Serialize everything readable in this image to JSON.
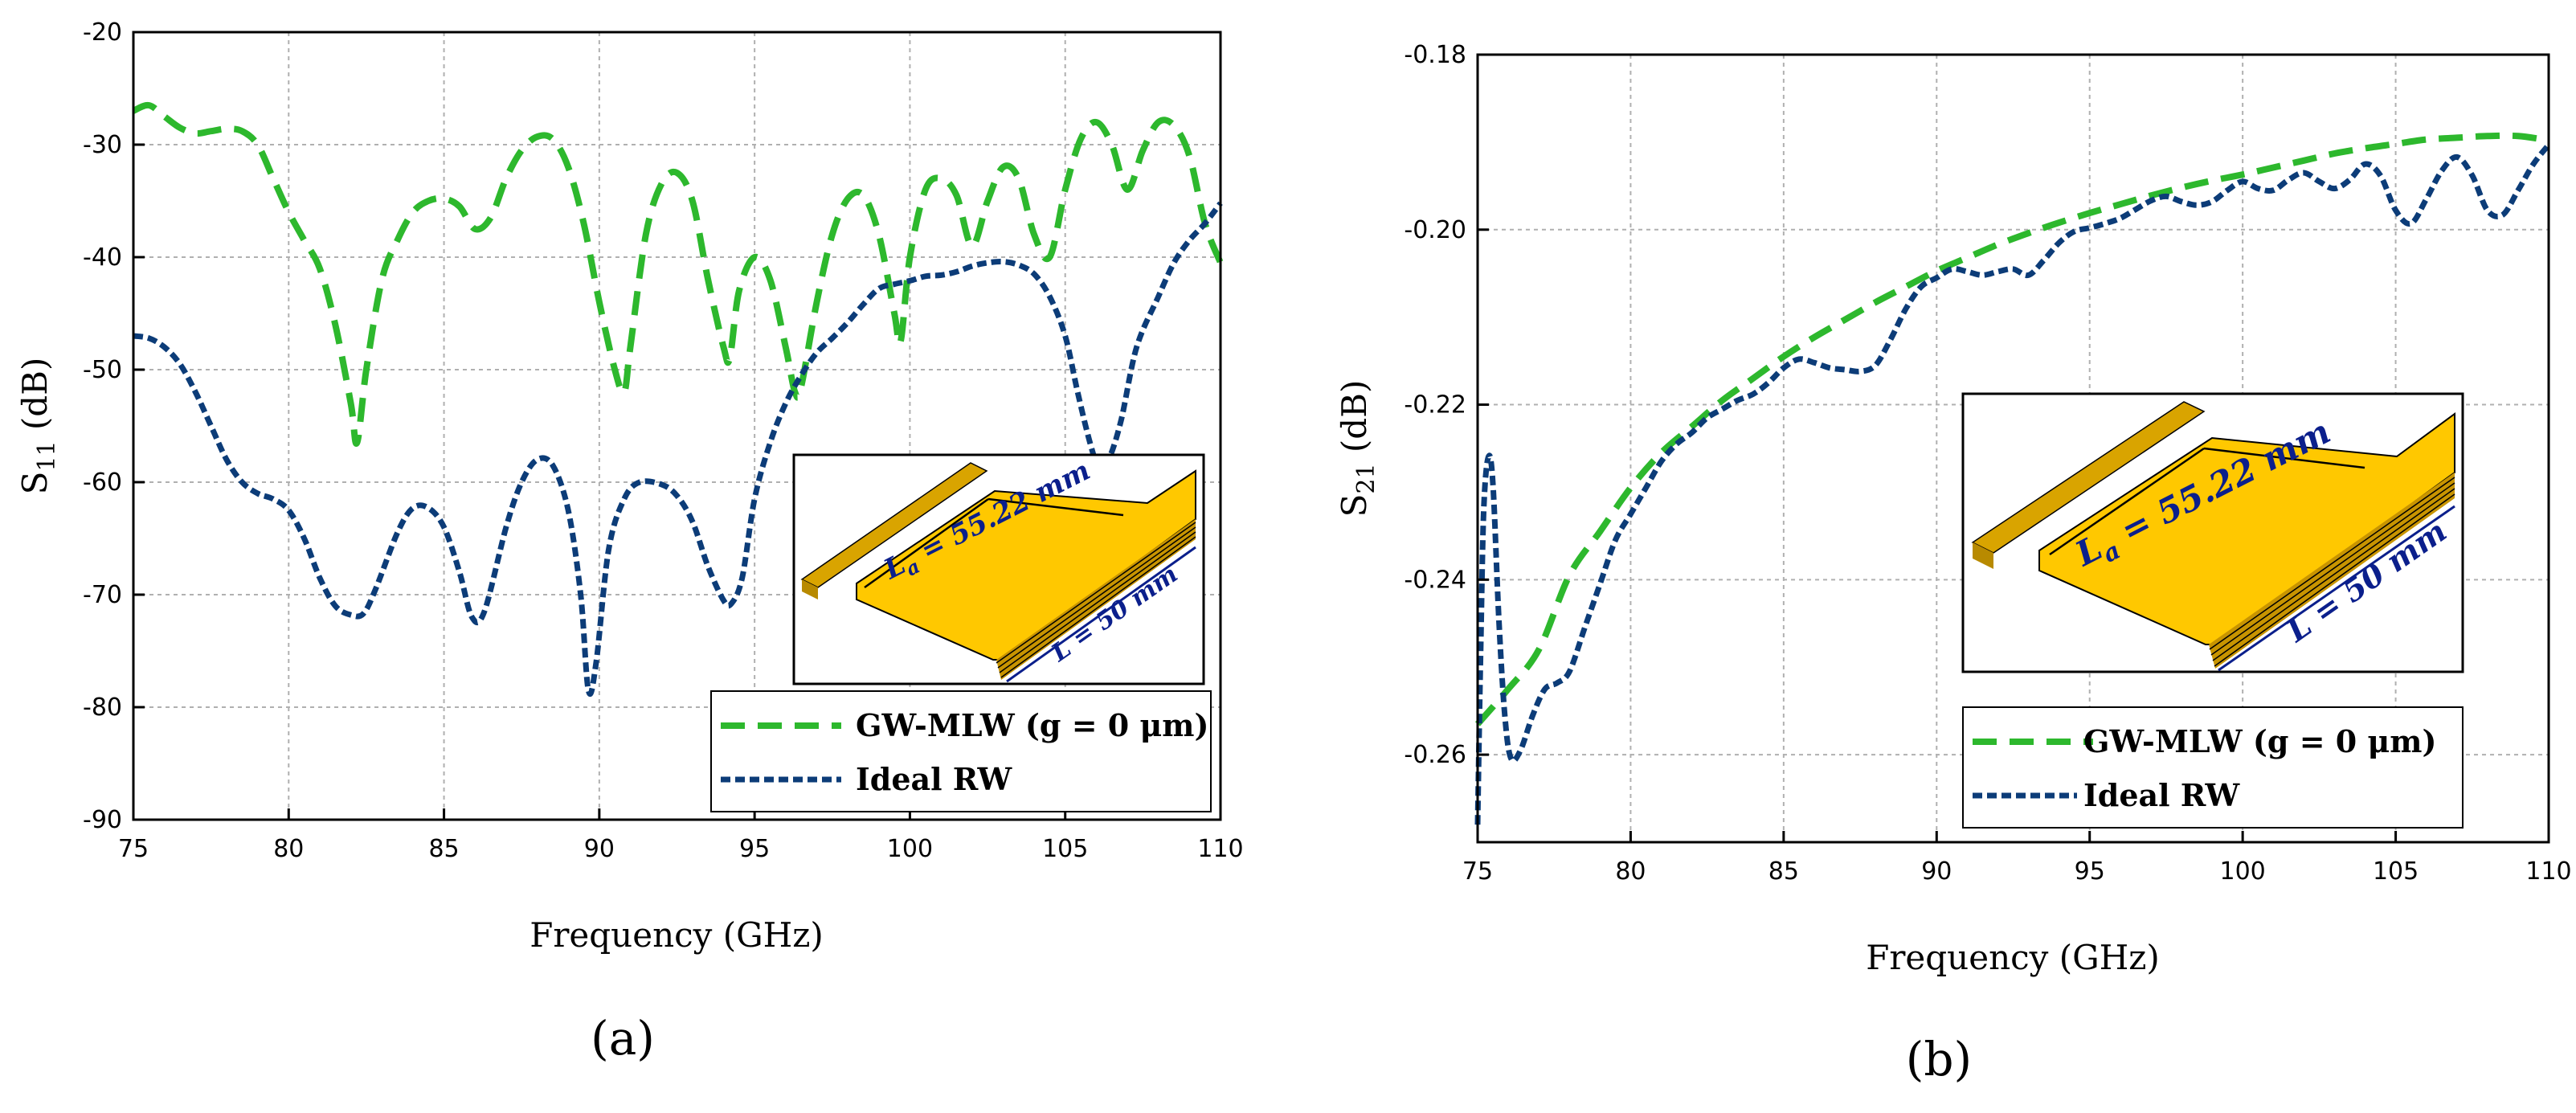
{
  "colors": {
    "gw": "#2db82d",
    "ideal": "#0c3c78",
    "gold": "#ffc800",
    "dim": "#0b1f8c"
  },
  "chart_data": [
    {
      "id": "a",
      "type": "line",
      "caption": "(a)",
      "xlabel": "Frequency (GHz)",
      "ylabel": {
        "main": "S",
        "sub": "11",
        "rest": " (dB)"
      },
      "xlim": [
        75,
        110
      ],
      "ylim": [
        -90,
        -20
      ],
      "xticks": [
        75,
        80,
        85,
        90,
        95,
        100,
        105,
        110
      ],
      "yticks": [
        -20,
        -30,
        -40,
        -50,
        -60,
        -70,
        -80,
        -90
      ],
      "xtick_labels": [
        "75",
        "80",
        "85",
        "90",
        "95",
        "100",
        "105",
        "110"
      ],
      "ytick_labels": [
        "-20",
        "-30",
        "-40",
        "-50",
        "-60",
        "-70",
        "-80",
        "-90"
      ],
      "legend": {
        "position": "bottom-right",
        "entries": [
          "GW-MLW (g = 0 μm)",
          "Ideal RW"
        ]
      },
      "inset": {
        "label_la": "L",
        "label_la_sub": "a",
        "label_la_rest": " = 55.22 mm",
        "label_l": "L = 50 mm"
      },
      "series": [
        {
          "name": "GW-MLW (g = 0 μm)",
          "style": "dashed",
          "x": [
            75,
            75.5,
            76,
            76.5,
            77,
            77.5,
            78,
            78.5,
            79,
            79.5,
            80,
            80.5,
            81,
            81.5,
            82,
            82.2,
            82.5,
            83,
            83.5,
            84,
            84.5,
            85,
            85.5,
            86,
            86.5,
            87,
            87.5,
            88,
            88.5,
            89,
            89.5,
            90,
            90.5,
            90.8,
            91,
            91.5,
            92,
            92.5,
            93,
            93.5,
            94,
            94.2,
            94.5,
            95,
            95.5,
            96,
            96.3,
            96.5,
            97,
            97.5,
            98,
            98.5,
            99,
            99.5,
            99.7,
            100,
            100.5,
            101,
            101.5,
            102,
            102.5,
            103,
            103.5,
            104,
            104.5,
            105,
            105.5,
            106,
            106.5,
            107,
            107.5,
            108,
            108.5,
            109,
            109.5,
            110
          ],
          "y": [
            -27,
            -26.5,
            -27.5,
            -28.5,
            -29,
            -28.8,
            -28.6,
            -28.8,
            -30,
            -33,
            -36,
            -38.5,
            -41,
            -46,
            -53,
            -56.5,
            -50,
            -42,
            -38.5,
            -36,
            -35,
            -34.8,
            -35.5,
            -37.5,
            -36.5,
            -33,
            -30.5,
            -29.3,
            -29.5,
            -32,
            -37,
            -44,
            -50,
            -52,
            -48,
            -38,
            -33.5,
            -32.5,
            -35,
            -42,
            -48,
            -49,
            -43,
            -40,
            -42,
            -48,
            -52,
            -51.5,
            -44,
            -38,
            -34.8,
            -34.5,
            -38,
            -45,
            -47.5,
            -40,
            -34,
            -33,
            -34.5,
            -39,
            -35,
            -32,
            -33,
            -38,
            -40,
            -34,
            -29.5,
            -28,
            -30,
            -34,
            -30.5,
            -28,
            -28.3,
            -31,
            -37,
            -40.5
          ]
        },
        {
          "name": "Ideal RW",
          "style": "dotted",
          "x": [
            75,
            75.5,
            76,
            76.5,
            77,
            77.5,
            78,
            78.5,
            79,
            79.5,
            80,
            80.5,
            81,
            81.5,
            82,
            82.4,
            82.8,
            83.5,
            84,
            84.5,
            85,
            85.5,
            85.9,
            86.3,
            87,
            87.5,
            88,
            88.5,
            89,
            89.4,
            89.65,
            89.9,
            90.3,
            90.8,
            91.3,
            92,
            92.5,
            93,
            93.5,
            94,
            94.25,
            94.6,
            95,
            95.5,
            96,
            96.5,
            97,
            97.5,
            98,
            98.5,
            99,
            99.5,
            100,
            100.5,
            101,
            101.5,
            102,
            102.5,
            103,
            103.5,
            104,
            104.5,
            105,
            105.4,
            105.8,
            106.1,
            106.4,
            106.8,
            107.3,
            108,
            108.5,
            109,
            109.5,
            110
          ],
          "y": [
            -47,
            -47.2,
            -48,
            -49.5,
            -52,
            -55,
            -58,
            -60,
            -61,
            -61.5,
            -62.5,
            -65,
            -68.5,
            -71,
            -71.8,
            -71.7,
            -69.5,
            -64.5,
            -62.3,
            -62.3,
            -64,
            -68,
            -72,
            -71.5,
            -64,
            -60,
            -58,
            -58.5,
            -62.5,
            -70,
            -78.5,
            -76,
            -66,
            -61.5,
            -60,
            -60.2,
            -61.2,
            -63.5,
            -67.5,
            -70.5,
            -70.8,
            -68.5,
            -61.5,
            -56.5,
            -53,
            -50.5,
            -48.5,
            -47.2,
            -45.8,
            -44.2,
            -42.8,
            -42.4,
            -42.1,
            -41.7,
            -41.6,
            -41.3,
            -40.8,
            -40.5,
            -40.4,
            -40.7,
            -41.5,
            -43.5,
            -47,
            -52,
            -56.5,
            -58.8,
            -58,
            -54.5,
            -48,
            -43.5,
            -40.5,
            -38.5,
            -37,
            -35.2
          ]
        }
      ]
    },
    {
      "id": "b",
      "type": "line",
      "caption": "(b)",
      "xlabel": "Frequency (GHz)",
      "ylabel": {
        "main": "S",
        "sub": "21",
        "rest": " (dB)"
      },
      "xlim": [
        75,
        110
      ],
      "ylim": [
        -0.27,
        -0.18
      ],
      "xticks": [
        75,
        80,
        85,
        90,
        95,
        100,
        105,
        110
      ],
      "yticks": [
        -0.18,
        -0.2,
        -0.22,
        -0.24,
        -0.26
      ],
      "xtick_labels": [
        "75",
        "80",
        "85",
        "90",
        "95",
        "100",
        "105",
        "110"
      ],
      "ytick_labels": [
        "-0.18",
        "-0.20",
        "-0.22",
        "-0.24",
        "-0.26"
      ],
      "legend": {
        "position": "bottom-right",
        "entries": [
          "GW-MLW (g = 0 μm)",
          "Ideal RW"
        ]
      },
      "inset": {
        "label_la": "L",
        "label_la_sub": "a",
        "label_la_rest": " = 55.22 mm",
        "label_l": "L = 50 mm"
      },
      "series": [
        {
          "name": "GW-MLW (g = 0 μm)",
          "style": "dashed",
          "x": [
            75,
            76,
            77,
            78,
            79,
            80,
            81,
            82,
            83,
            84,
            85,
            86,
            87,
            88,
            89,
            90,
            91,
            92,
            93,
            94,
            95,
            96,
            97,
            98,
            99,
            100,
            101,
            102,
            103,
            104,
            105,
            106,
            107,
            108,
            109,
            110
          ],
          "y": [
            -0.2565,
            -0.2525,
            -0.248,
            -0.2395,
            -0.2345,
            -0.2295,
            -0.2255,
            -0.2225,
            -0.2195,
            -0.217,
            -0.2145,
            -0.2123,
            -0.2103,
            -0.2083,
            -0.2065,
            -0.2047,
            -0.2032,
            -0.2017,
            -0.2004,
            -0.1992,
            -0.1981,
            -0.1971,
            -0.1961,
            -0.1952,
            -0.1944,
            -0.1937,
            -0.1929,
            -0.1921,
            -0.1913,
            -0.1907,
            -0.1902,
            -0.1897,
            -0.1895,
            -0.1893,
            -0.1893,
            -0.1898
          ]
        },
        {
          "name": "Ideal RW",
          "style": "dotted",
          "x": [
            75,
            75.1,
            75.2,
            75.35,
            75.5,
            75.7,
            75.9,
            76.1,
            76.4,
            76.8,
            77.2,
            77.6,
            78,
            78.5,
            79,
            79.5,
            80,
            80.5,
            81,
            81.5,
            82,
            82.5,
            83,
            83.5,
            84,
            84.5,
            85,
            85.5,
            86,
            86.5,
            87,
            87.5,
            88,
            88.5,
            89,
            89.5,
            90,
            90.5,
            91,
            91.5,
            92,
            92.5,
            93,
            93.5,
            94,
            94.5,
            95,
            95.5,
            96,
            96.5,
            97,
            97.5,
            98,
            98.5,
            99,
            99.5,
            100,
            100.5,
            101,
            101.5,
            102,
            102.5,
            103,
            103.5,
            104,
            104.5,
            105,
            105.5,
            106,
            106.5,
            107,
            107.5,
            108,
            108.5,
            109,
            109.5,
            110
          ],
          "y": [
            -0.268,
            -0.248,
            -0.232,
            -0.226,
            -0.229,
            -0.245,
            -0.256,
            -0.2605,
            -0.2595,
            -0.2555,
            -0.2525,
            -0.2518,
            -0.2505,
            -0.2455,
            -0.2405,
            -0.2355,
            -0.2325,
            -0.2295,
            -0.2265,
            -0.2245,
            -0.2232,
            -0.2215,
            -0.2205,
            -0.2195,
            -0.2188,
            -0.2175,
            -0.2158,
            -0.2148,
            -0.2152,
            -0.2158,
            -0.216,
            -0.2162,
            -0.2155,
            -0.2125,
            -0.209,
            -0.2065,
            -0.2055,
            -0.2045,
            -0.2048,
            -0.2052,
            -0.2048,
            -0.2045,
            -0.2052,
            -0.2035,
            -0.2015,
            -0.2002,
            -0.1998,
            -0.1993,
            -0.1987,
            -0.1977,
            -0.1967,
            -0.1962,
            -0.1968,
            -0.1972,
            -0.1968,
            -0.1955,
            -0.1945,
            -0.1953,
            -0.1955,
            -0.1943,
            -0.1935,
            -0.1945,
            -0.1953,
            -0.1943,
            -0.1925,
            -0.1938,
            -0.1978,
            -0.1993,
            -0.1965,
            -0.1933,
            -0.1917,
            -0.1938,
            -0.1978,
            -0.1983,
            -0.1955,
            -0.1925,
            -0.1903
          ]
        }
      ]
    }
  ]
}
